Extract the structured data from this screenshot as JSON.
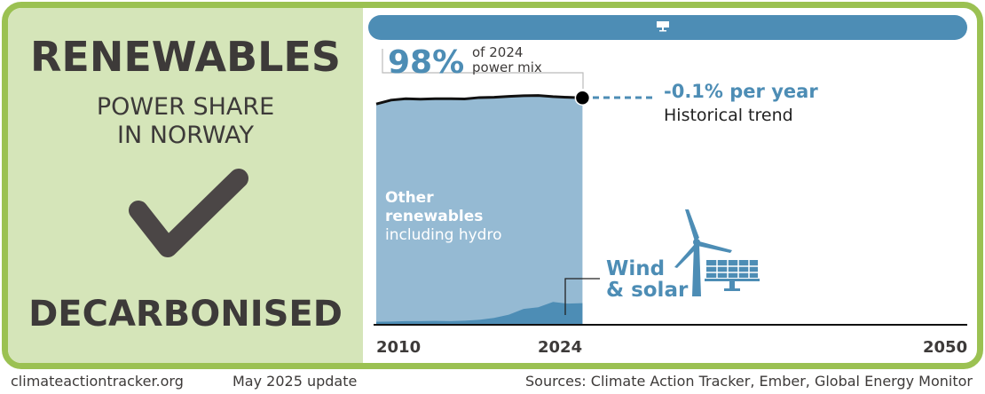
{
  "panel": {
    "title": "RENEWABLES",
    "subtitle_line1": "POWER SHARE",
    "subtitle_line2": "IN NORWAY",
    "status_icon": "checkmark-icon",
    "status": "DECARBONISED"
  },
  "footer": {
    "website": "climateactiontracker.org",
    "update": "May 2025 update",
    "sources": "Sources: Climate Action Tracker, Ember, Global Energy Monitor"
  },
  "colors": {
    "frame": "#9bc152",
    "panel_bg": "#d5e5b9",
    "accent_blue": "#4d8db5",
    "other_renewables": "#95bad3",
    "wind_solar": "#4d8db5",
    "text": "#3d3a39"
  },
  "chart_data": {
    "type": "area",
    "x_ticks": [
      "2010",
      "2024",
      "2050"
    ],
    "xlim": [
      2010,
      2050
    ],
    "ylim": [
      0,
      100
    ],
    "years": [
      2010,
      2011,
      2012,
      2013,
      2014,
      2015,
      2016,
      2017,
      2018,
      2019,
      2020,
      2021,
      2022,
      2023,
      2024
    ],
    "series": [
      {
        "name": "Wind & solar",
        "values": [
          0.9,
          1.0,
          1.2,
          1.2,
          1.3,
          1.2,
          1.4,
          1.8,
          2.6,
          4.0,
          6.5,
          7.2,
          9.5,
          8.8,
          9.0
        ]
      },
      {
        "name": "Other renewables including hydro",
        "values": [
          94.4,
          96.0,
          96.4,
          96.2,
          96.3,
          96.4,
          96.1,
          96.3,
          95.6,
          94.6,
          92.4,
          91.8,
          89.0,
          89.4,
          89.0
        ]
      }
    ],
    "total_renewables": [
      95.3,
      97.0,
      97.6,
      97.4,
      97.6,
      97.6,
      97.5,
      98.1,
      98.2,
      98.6,
      98.9,
      99.0,
      98.5,
      98.2,
      98.0
    ],
    "target_bar_icon": "solar-panel-icon",
    "callout": {
      "value": "98%",
      "text_line1": "of 2024",
      "text_line2": "power mix"
    },
    "trend": {
      "value": "-0.1% per year",
      "label": "Historical trend"
    },
    "labels": {
      "other_line1": "Other",
      "other_line2": "renewables",
      "other_line3": "including hydro",
      "ws_line1": "Wind",
      "ws_line2": "& solar"
    },
    "icons": [
      "wind-turbine-icon",
      "solar-panel-icon"
    ]
  }
}
